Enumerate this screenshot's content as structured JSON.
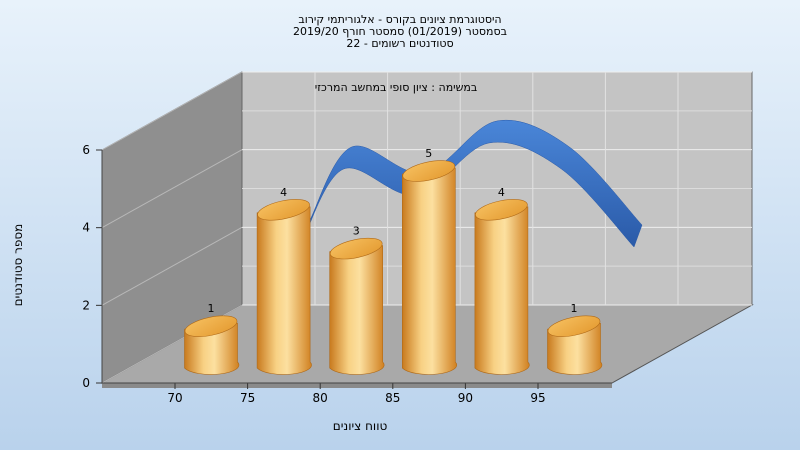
{
  "title_lines": [
    "היסטוגרמת ציונים בקורס - אלגוריתמי קירוב",
    "בסמסטר  (01/2019)  סמסטר חורף 2019/20",
    "סטודנטים רשומים - 22"
  ],
  "chart_data": {
    "type": "bar",
    "annotation": "במשימה : ציון סופי במחשב המרכזי",
    "categories": [
      "70",
      "75",
      "80",
      "85",
      "90",
      "95"
    ],
    "values": [
      1,
      4,
      3,
      5,
      4,
      1
    ],
    "x_tick_labels": [
      "70",
      "75",
      "80",
      "85",
      "90",
      "95"
    ],
    "y_tick_labels": [
      "0",
      "2",
      "4",
      "6"
    ],
    "xlabel": "טווח ציונים",
    "ylabel": "מספר סטודנטים",
    "ylim": [
      0,
      6
    ],
    "grid": true,
    "colors": {
      "bar": "#F0B050",
      "curve": "#3A70C0",
      "background": "#C8DCF0",
      "wall": "#C0C0C0",
      "side_wall": "#909090",
      "floor": "#A8A8A8"
    }
  }
}
